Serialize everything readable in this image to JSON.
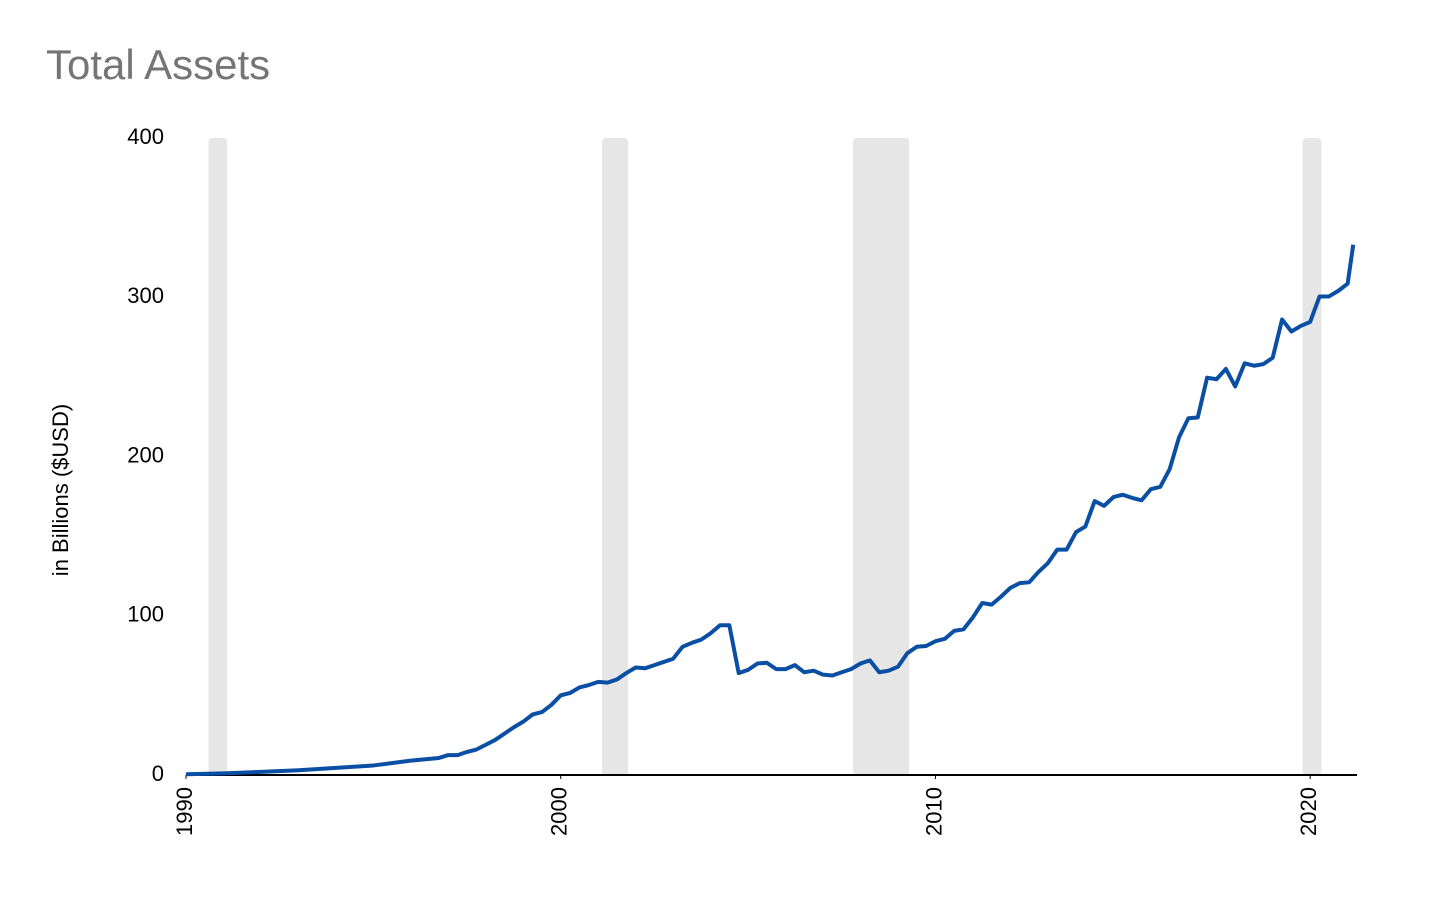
{
  "chart_data": {
    "type": "line",
    "title": "Total Assets",
    "y_label": "in Billions ($USD)",
    "x": [
      1990.0,
      1991.0,
      1992.0,
      1993.0,
      1994.0,
      1995.0,
      1996.0,
      1996.75,
      1997.0,
      1997.25,
      1997.5,
      1997.75,
      1998.0,
      1998.25,
      1998.5,
      1998.75,
      1999.0,
      1999.25,
      1999.5,
      1999.75,
      2000.0,
      2000.25,
      2000.5,
      2000.75,
      2001.0,
      2001.25,
      2001.5,
      2001.75,
      2002.0,
      2002.25,
      2002.5,
      2002.75,
      2003.0,
      2003.25,
      2003.5,
      2003.75,
      2004.0,
      2004.25,
      2004.5,
      2004.75,
      2005.0,
      2005.25,
      2005.5,
      2005.75,
      2006.0,
      2006.25,
      2006.5,
      2006.75,
      2007.0,
      2007.25,
      2007.5,
      2007.75,
      2008.0,
      2008.25,
      2008.5,
      2008.75,
      2009.0,
      2009.25,
      2009.5,
      2009.75,
      2010.0,
      2010.25,
      2010.5,
      2010.75,
      2011.0,
      2011.25,
      2011.5,
      2011.75,
      2012.0,
      2012.25,
      2012.5,
      2012.75,
      2013.0,
      2013.25,
      2013.5,
      2013.75,
      2014.0,
      2014.25,
      2014.5,
      2014.75,
      2015.0,
      2015.25,
      2015.5,
      2015.75,
      2016.0,
      2016.25,
      2016.5,
      2016.75,
      2017.0,
      2017.25,
      2017.5,
      2017.75,
      2018.0,
      2018.25,
      2018.5,
      2018.75,
      2019.0,
      2019.25,
      2019.5,
      2019.75,
      2020.0,
      2020.25,
      2020.5,
      2020.75,
      2021.0,
      2021.15
    ],
    "series": [
      {
        "name": "Total Assets",
        "color": "#0b4fa5",
        "values": [
          0.5,
          1,
          2,
          3,
          4.5,
          6,
          9,
          10.7,
          12.5,
          12.5,
          14.5,
          16,
          19,
          22,
          26,
          30,
          33.5,
          38,
          39.5,
          44,
          50,
          51.5,
          55,
          56.5,
          58.5,
          58,
          60,
          64,
          67.5,
          67,
          69,
          71,
          73,
          80.5,
          83,
          85,
          89,
          94,
          94,
          64,
          66,
          70,
          70.5,
          66.5,
          66.5,
          69,
          64.5,
          65.5,
          63,
          62.5,
          64.5,
          66.5,
          70,
          72,
          64.5,
          65.5,
          68,
          76.5,
          80.5,
          81,
          84,
          85.5,
          90.5,
          91.5,
          99,
          108,
          107,
          112,
          117.5,
          120.5,
          121,
          127.5,
          133,
          141.5,
          141.5,
          152.5,
          156,
          172,
          169,
          174.5,
          176,
          174,
          172.5,
          179.5,
          181,
          192,
          212,
          224,
          224.5,
          249.5,
          248.5,
          255,
          244,
          258.5,
          257,
          258,
          262,
          286,
          278.5,
          282,
          284.5,
          300.5,
          300.5,
          304,
          308.5,
          333
        ]
      }
    ],
    "shaded_periods": [
      [
        1990.6,
        1991.1
      ],
      [
        2001.1,
        2001.8
      ],
      [
        2007.8,
        2009.3
      ],
      [
        2019.8,
        2020.3
      ]
    ],
    "shade_color": "#e6e6e6",
    "xlim": [
      1990,
      2021.25
    ],
    "xticks": [
      1990,
      2000,
      2010,
      2020
    ],
    "ylim": [
      0,
      400
    ],
    "yticks": [
      0,
      100,
      200,
      300,
      400
    ],
    "grid": false
  }
}
